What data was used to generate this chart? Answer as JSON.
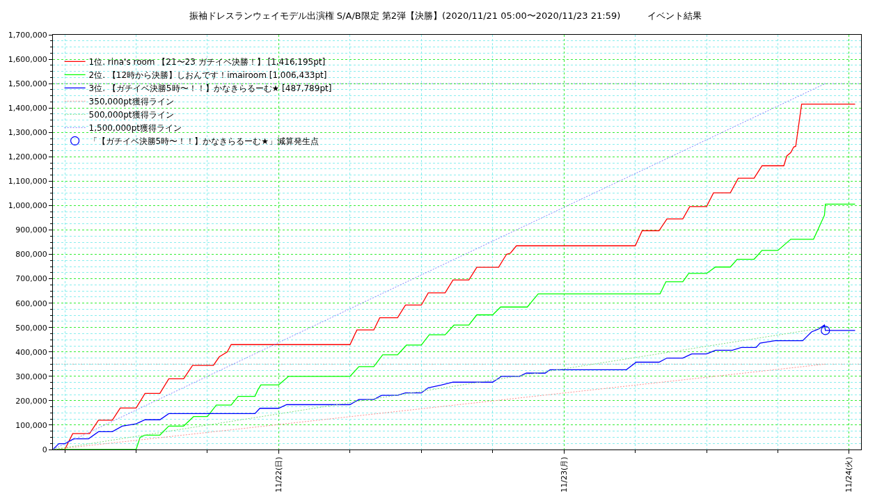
{
  "chart_data": {
    "type": "line",
    "title": "振袖ドレスランウェイモデル出演権 S/A/B限定 第2弾【決勝】(2020/11/21 05:00〜2020/11/23 21:59)　　　イベント結果",
    "xlim": [
      "2020-11-21T05:00",
      "2020-11-24T01:00"
    ],
    "xticks": [
      {
        "value": "2020-11-21T06:00",
        "label": null
      },
      {
        "value": "2020-11-21T12:00",
        "label": null
      },
      {
        "value": "2020-11-21T18:00",
        "label": null
      },
      {
        "value": "2020-11-22",
        "label": "11/22(日)"
      },
      {
        "value": "2020-11-22T06:00",
        "label": null
      },
      {
        "value": "2020-11-22T12:00",
        "label": null
      },
      {
        "value": "2020-11-22T18:00",
        "label": null
      },
      {
        "value": "2020-11-23",
        "label": "11/23(月)"
      },
      {
        "value": "2020-11-23T06:00",
        "label": null
      },
      {
        "value": "2020-11-23T12:00",
        "label": null
      },
      {
        "value": "2020-11-23T18:00",
        "label": null
      },
      {
        "value": "2020-11-24",
        "label": "11/24(火)"
      }
    ],
    "ylim": [
      0,
      1700000
    ],
    "yticks": [
      {
        "value": 0,
        "label": "0"
      },
      {
        "value": 100000,
        "label": "100,000"
      },
      {
        "value": 200000,
        "label": "200,000"
      },
      {
        "value": 300000,
        "label": "300,000"
      },
      {
        "value": 400000,
        "label": "400,000"
      },
      {
        "value": 500000,
        "label": "500,000"
      },
      {
        "value": 600000,
        "label": "600,000"
      },
      {
        "value": 700000,
        "label": "700,000"
      },
      {
        "value": 800000,
        "label": "800,000"
      },
      {
        "value": 900000,
        "label": "900,000"
      },
      {
        "value": 1000000,
        "label": "1,000,000"
      },
      {
        "value": 1100000,
        "label": "1,100,000"
      },
      {
        "value": 1200000,
        "label": "1,200,000"
      },
      {
        "value": 1300000,
        "label": "1,300,000"
      },
      {
        "value": 1400000,
        "label": "1,400,000"
      },
      {
        "value": 1500000,
        "label": "1,500,000"
      },
      {
        "value": 1600000,
        "label": "1,600,000"
      },
      {
        "value": 1700000,
        "label": "1,700,000"
      },
      {
        "value": 25000,
        "label": null
      },
      {
        "value": 50000,
        "label": null
      },
      {
        "value": 75000,
        "label": null
      },
      {
        "value": 125000,
        "label": null
      },
      {
        "value": 150000,
        "label": null
      },
      {
        "value": 175000,
        "label": null
      },
      {
        "value": 225000,
        "label": null
      },
      {
        "value": 250000,
        "label": null
      },
      {
        "value": 275000,
        "label": null
      },
      {
        "value": 325000,
        "label": null
      },
      {
        "value": 350000,
        "label": null
      },
      {
        "value": 375000,
        "label": null
      },
      {
        "value": 425000,
        "label": null
      },
      {
        "value": 450000,
        "label": null
      },
      {
        "value": 475000,
        "label": null
      },
      {
        "value": 525000,
        "label": null
      },
      {
        "value": 550000,
        "label": null
      },
      {
        "value": 575000,
        "label": null
      },
      {
        "value": 625000,
        "label": null
      },
      {
        "value": 650000,
        "label": null
      },
      {
        "value": 675000,
        "label": null
      },
      {
        "value": 725000,
        "label": null
      },
      {
        "value": 750000,
        "label": null
      },
      {
        "value": 775000,
        "label": null
      },
      {
        "value": 825000,
        "label": null
      },
      {
        "value": 850000,
        "label": null
      },
      {
        "value": 875000,
        "label": null
      },
      {
        "value": 925000,
        "label": null
      },
      {
        "value": 950000,
        "label": null
      },
      {
        "value": 975000,
        "label": null
      },
      {
        "value": 1025000,
        "label": null
      },
      {
        "value": 1050000,
        "label": null
      },
      {
        "value": 1075000,
        "label": null
      },
      {
        "value": 1125000,
        "label": null
      },
      {
        "value": 1150000,
        "label": null
      },
      {
        "value": 1175000,
        "label": null
      },
      {
        "value": 1225000,
        "label": null
      },
      {
        "value": 1250000,
        "label": null
      },
      {
        "value": 1275000,
        "label": null
      },
      {
        "value": 1325000,
        "label": null
      },
      {
        "value": 1350000,
        "label": null
      },
      {
        "value": 1375000,
        "label": null
      },
      {
        "value": 1425000,
        "label": null
      },
      {
        "value": 1450000,
        "label": null
      },
      {
        "value": 1475000,
        "label": null
      },
      {
        "value": 1525000,
        "label": null
      },
      {
        "value": 1550000,
        "label": null
      },
      {
        "value": 1575000,
        "label": null
      },
      {
        "value": 1625000,
        "label": null
      },
      {
        "value": 1650000,
        "label": null
      },
      {
        "value": 1675000,
        "label": null
      }
    ],
    "grid": true,
    "legend": "top left",
    "marker": "none",
    "line_style": "solid",
    "ref_lines": [
      {
        "axis": "y",
        "value": 350000,
        "label": null,
        "color": "#b0a0a0",
        "line_style": "dotted"
      },
      {
        "axis": "y",
        "value": 1500000,
        "label": null,
        "color": "#8080ff",
        "line_style": "dotted"
      }
    ],
    "series": [
      {
        "name": "1位. rina's room 【21〜23 ガチイベ決勝！】 [1,416,195pt]",
        "color": "#ff0000",
        "x": [
          "2020-11-21T05:00",
          "2020-11-21T06:00",
          "2020-11-21T06:40",
          "2020-11-21T08:05",
          "2020-11-21T08:50",
          "2020-11-21T10:00",
          "2020-11-21T10:40",
          "2020-11-21T12:00",
          "2020-11-21T12:45",
          "2020-11-21T14:00",
          "2020-11-21T14:45",
          "2020-11-21T16:00",
          "2020-11-21T16:45",
          "2020-11-21T18:30",
          "2020-11-21T19:00",
          "2020-11-21T19:40",
          "2020-11-21T20:00",
          "2020-11-22T06:00",
          "2020-11-22T06:35",
          "2020-11-22T08:00",
          "2020-11-22T08:30",
          "2020-11-22T10:00",
          "2020-11-22T10:40",
          "2020-11-22T12:00",
          "2020-11-22T12:35",
          "2020-11-22T14:00",
          "2020-11-22T14:40",
          "2020-11-22T16:00",
          "2020-11-22T16:40",
          "2020-11-22T18:30",
          "2020-11-22T19:10",
          "2020-11-22T19:30",
          "2020-11-22T20:00",
          "2020-11-23T06:00",
          "2020-11-23T06:35",
          "2020-11-23T08:00",
          "2020-11-23T08:40",
          "2020-11-23T10:00",
          "2020-11-23T10:35",
          "2020-11-23T12:00",
          "2020-11-23T12:35",
          "2020-11-23T14:00",
          "2020-11-23T14:40",
          "2020-11-23T16:00",
          "2020-11-23T16:40",
          "2020-11-23T18:30",
          "2020-11-23T18:45",
          "2020-11-23T19:05",
          "2020-11-23T19:20",
          "2020-11-23T19:30",
          "2020-11-23T20:00",
          "2020-11-24T00:30"
        ],
        "values": [
          0,
          0,
          65000,
          65000,
          120000,
          120000,
          170000,
          170000,
          230000,
          230000,
          290000,
          290000,
          345000,
          345000,
          380000,
          400000,
          430000,
          430000,
          490000,
          490000,
          540000,
          540000,
          592000,
          592000,
          642000,
          642000,
          695000,
          695000,
          747000,
          747000,
          800000,
          805000,
          835000,
          835000,
          897000,
          897000,
          945000,
          945000,
          996000,
          996000,
          1052000,
          1052000,
          1112000,
          1112000,
          1163000,
          1163000,
          1203000,
          1217000,
          1240000,
          1243000,
          1416000,
          1416000
        ]
      },
      {
        "name": "2位. 【12時から決勝】しおんです！imairoom [1,006,433pt]",
        "color": "#00ff00",
        "x": [
          "2020-11-21T05:00",
          "2020-11-21T12:00",
          "2020-11-21T12:20",
          "2020-11-21T12:45",
          "2020-11-21T14:00",
          "2020-11-21T14:45",
          "2020-11-21T16:00",
          "2020-11-21T16:50",
          "2020-11-21T18:00",
          "2020-11-21T18:45",
          "2020-11-21T20:00",
          "2020-11-21T20:35",
          "2020-11-21T22:00",
          "2020-11-21T22:15",
          "2020-11-21T22:30",
          "2020-11-22T00:00",
          "2020-11-22T00:50",
          "2020-11-22T06:00",
          "2020-11-22T06:45",
          "2020-11-22T08:00",
          "2020-11-22T08:45",
          "2020-11-22T10:00",
          "2020-11-22T10:45",
          "2020-11-22T12:00",
          "2020-11-22T12:40",
          "2020-11-22T14:00",
          "2020-11-22T14:45",
          "2020-11-22T16:00",
          "2020-11-22T16:40",
          "2020-11-22T18:00",
          "2020-11-22T18:40",
          "2020-11-22T20:55",
          "2020-11-22T21:50",
          "2020-11-23T08:05",
          "2020-11-23T08:35",
          "2020-11-23T10:00",
          "2020-11-23T10:30",
          "2020-11-23T12:00",
          "2020-11-23T12:45",
          "2020-11-23T14:00",
          "2020-11-23T14:35",
          "2020-11-23T16:00",
          "2020-11-23T16:40",
          "2020-11-23T18:00",
          "2020-11-23T19:05",
          "2020-11-23T21:00",
          "2020-11-23T21:55",
          "2020-11-23T22:00",
          "2020-11-24T00:30"
        ],
        "values": [
          0,
          0,
          50000,
          59000,
          59000,
          96000,
          96000,
          135000,
          135000,
          182000,
          182000,
          218000,
          218000,
          245000,
          265000,
          265000,
          300000,
          300000,
          340000,
          340000,
          388000,
          388000,
          428000,
          428000,
          470000,
          470000,
          510000,
          510000,
          552000,
          552000,
          584000,
          584000,
          638000,
          638000,
          688000,
          688000,
          722000,
          722000,
          748000,
          748000,
          780000,
          780000,
          816000,
          816000,
          862000,
          862000,
          960000,
          1006000,
          1006000
        ]
      },
      {
        "name": "3位. 【ガチイベ決勝5時〜！！】かなきらるーむ★ [487,789pt]",
        "color": "#0000ff",
        "x": [
          "2020-11-21T05:00",
          "2020-11-21T05:30",
          "2020-11-21T06:00",
          "2020-11-21T06:45",
          "2020-11-21T08:00",
          "2020-11-21T08:50",
          "2020-11-21T10:00",
          "2020-11-21T10:50",
          "2020-11-21T12:00",
          "2020-11-21T12:45",
          "2020-11-21T14:00",
          "2020-11-21T14:45",
          "2020-11-21T22:00",
          "2020-11-21T22:25",
          "2020-11-22T00:00",
          "2020-11-22T00:40",
          "2020-11-22T06:00",
          "2020-11-22T06:45",
          "2020-11-22T08:00",
          "2020-11-22T08:40",
          "2020-11-22T10:00",
          "2020-11-22T10:40",
          "2020-11-22T12:00",
          "2020-11-22T12:35",
          "2020-11-22T13:40",
          "2020-11-22T14:40",
          "2020-11-22T18:00",
          "2020-11-22T18:45",
          "2020-11-22T20:15",
          "2020-11-22T20:50",
          "2020-11-22T22:25",
          "2020-11-22T22:50",
          "2020-11-23T05:15",
          "2020-11-23T06:05",
          "2020-11-23T08:00",
          "2020-11-23T08:40",
          "2020-11-23T10:00",
          "2020-11-23T10:45",
          "2020-11-23T12:00",
          "2020-11-23T12:45",
          "2020-11-23T14:10",
          "2020-11-23T14:55",
          "2020-11-23T16:10",
          "2020-11-23T16:30",
          "2020-11-23T17:45",
          "2020-11-23T20:05",
          "2020-11-23T20:50",
          "2020-11-23T21:25",
          "2020-11-23T21:55",
          "2020-11-23T22:00",
          "2020-11-24T00:30"
        ],
        "values": [
          0,
          24000,
          24000,
          44000,
          44000,
          73000,
          73000,
          96000,
          105000,
          122000,
          122000,
          147000,
          147000,
          169000,
          169000,
          184000,
          184000,
          205000,
          205000,
          222000,
          222000,
          232000,
          232000,
          253000,
          264000,
          276000,
          276000,
          300000,
          300000,
          313000,
          313000,
          327000,
          327000,
          358000,
          358000,
          375000,
          375000,
          392000,
          392000,
          407000,
          407000,
          418000,
          418000,
          436000,
          446000,
          446000,
          482000,
          494000,
          510000,
          488000,
          488000
        ]
      },
      {
        "name": "350,000pt獲得ライン",
        "color": "#ff9090",
        "line_style": "dotted",
        "x": [
          "2020-11-21T05:00",
          "2020-11-23T21:59"
        ],
        "values": [
          0,
          350000
        ]
      },
      {
        "name": "500,000pt獲得ライン",
        "color": "#80e080",
        "line_style": "dotted",
        "x": [
          "2020-11-21T05:00",
          "2020-11-23T21:59"
        ],
        "values": [
          0,
          500000
        ]
      },
      {
        "name": "1,500,000pt獲得ライン",
        "color": "#8080ff",
        "line_style": "dotted",
        "x": [
          "2020-11-21T05:00",
          "2020-11-23T21:59"
        ],
        "values": [
          0,
          1500000
        ]
      },
      {
        "name": "「【ガチイベ決勝5時〜！！】かなきらるーむ★」減算発生点",
        "type": "scatter",
        "marker": "circle",
        "color": "#0000ff",
        "x": [
          "2020-11-23T22:00"
        ],
        "values": [
          488000
        ]
      }
    ]
  }
}
